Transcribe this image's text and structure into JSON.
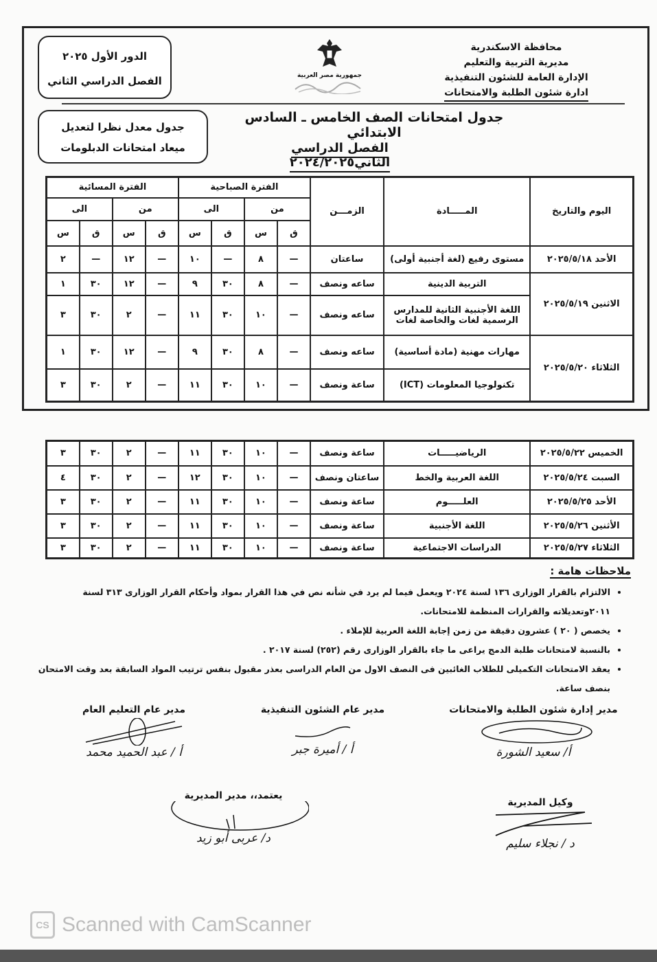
{
  "header": {
    "org_lines": [
      "محافظة الاسكندرية",
      "مديرية التربية والتعليم",
      "الإدارة العامة للشئون التنفيذية",
      "ادارة شئون الطلبة والامتحانات"
    ],
    "emblem_caption": "جمهورية مصر العربية",
    "box_session": [
      "الدور الأول ٢٠٢٥",
      "الفصل الدراسي الثاني"
    ],
    "box_note": [
      "جدول معدل نظرا لتعديل",
      "ميعاد  امتحانات الدبلومات"
    ],
    "title": "جدول امتحانات الصف الخامس ـ السادس الابتدائي",
    "subtitle": "الفصل الدراسي الثاني٢٠٢٤/٢٠٢٥"
  },
  "table_headers": {
    "day_date": "اليوم والتاريخ",
    "subject": "المـــــادة",
    "duration": "الزمـــن",
    "morning": "الفترة الصباحية",
    "evening": "الفترة المسائية",
    "from": "من",
    "to": "الى",
    "minute": "ق",
    "hour": "س"
  },
  "table1_rows": [
    {
      "day": "الأحد ٢٠٢٥/٥/١٨",
      "rowspan": 1,
      "subject": "مستوى رفيع (لغة أجنبية أولى)",
      "duration": "ساعتان",
      "times": [
        "—",
        "٨",
        "—",
        "١٠",
        "—",
        "١٢",
        "—",
        "٢"
      ]
    },
    {
      "day": "الاثنين ٢٠٢٥/٥/١٩",
      "rowspan": 2,
      "subject": "التربية الدينية",
      "duration": "ساعه ونصف",
      "times": [
        "—",
        "٨",
        "٣٠",
        "٩",
        "—",
        "١٢",
        "٣٠",
        "١"
      ]
    },
    {
      "subject": "اللغة الأجنبية الثانية للمدارس الرسمية لغات والخاصة لغات",
      "duration": "ساعه ونصف",
      "times": [
        "—",
        "١٠",
        "٣٠",
        "١١",
        "—",
        "٢",
        "٣٠",
        "٣"
      ]
    },
    {
      "day": "الثلاثاء ٢٠٢٥/٥/٢٠",
      "rowspan": 2,
      "subject": "مهارات مهنية (مادة أساسية)",
      "duration": "ساعه ونصف",
      "times": [
        "—",
        "٨",
        "٣٠",
        "٩",
        "—",
        "١٢",
        "٣٠",
        "١"
      ]
    },
    {
      "subject": "تكنولوجيا المعلومات (ICT)",
      "duration": "ساعة ونصف",
      "times": [
        "—",
        "١٠",
        "٣٠",
        "١١",
        "—",
        "٢",
        "٣٠",
        "٣"
      ]
    }
  ],
  "table2_rows": [
    {
      "day": "الخميس ٢٠٢٥/٥/٢٢",
      "rowspan": 1,
      "subject": "الرياضيـــــات",
      "duration": "ساعة ونصف",
      "times": [
        "—",
        "١٠",
        "٣٠",
        "١١",
        "—",
        "٢",
        "٣٠",
        "٣"
      ]
    },
    {
      "day": "السبت ٢٠٢٥/٥/٢٤",
      "rowspan": 1,
      "subject": "اللغة العربية والخط",
      "duration": "ساعتان ونصف",
      "times": [
        "—",
        "١٠",
        "٣٠",
        "١٢",
        "—",
        "٢",
        "٣٠",
        "٤"
      ]
    },
    {
      "day": "الأحد ٢٠٢٥/٥/٢٥",
      "rowspan": 1,
      "subject": "العلـــــوم",
      "duration": "ساعة ونصف",
      "times": [
        "—",
        "١٠",
        "٣٠",
        "١١",
        "—",
        "٢",
        "٣٠",
        "٣"
      ]
    },
    {
      "day": "الأثنين ٢٠٢٥/٥/٢٦",
      "rowspan": 1,
      "subject": "اللغة الأجنبية",
      "duration": "ساعة ونصف",
      "times": [
        "—",
        "١٠",
        "٣٠",
        "١١",
        "—",
        "٢",
        "٣٠",
        "٣"
      ]
    },
    {
      "day": "الثلاثاء ٢٠٢٥/٥/٢٧",
      "rowspan": 1,
      "subject": "الدراسات الاجتماعية",
      "duration": "ساعة ونصف",
      "times": [
        "—",
        "١٠",
        "٣٠",
        "١١",
        "—",
        "٢",
        "٣٠",
        "٣"
      ]
    }
  ],
  "notes": {
    "heading": "ملاحظات هامة :",
    "items": [
      "الالتزام بالقرار الوزارى ١٣٦ لسنة ٢٠٢٤ ويعمل فيما لم يرد في شأنه نص في هذا القرار بمواد وأحكام القرار الوزارى ٣١٣ لسنة ٢٠١١وتعديلاته والقرارات المنظمة للامتحانات.",
      "يخصص ( ٢٠ ) عشرون دقيقة من زمن إجابة اللغة العربية للإملاء .",
      "بالنسبة لامتحانات طلبة الدمج يراعى ما جاء بالقرار الوزارى رقم (٢٥٢) لسنة ٢٠١٧ .",
      "يعقد الامتحانات  التكميلى للطلاب الغائبين فى النصف الاول من العام الدراسى بعذر مقبول بنفس ترتيب المواد السابقة بعد وقت الامتحان بنصف ساعة."
    ]
  },
  "signatures": {
    "students_affairs": {
      "title": "مدير إدارة شئون الطلبة والامتحانات",
      "name": "أ/ سعيد الشورة"
    },
    "executive_affairs": {
      "title": "مدير عام الشئون التنفيذية",
      "name": "أ / أميرة جبر"
    },
    "general_education": {
      "title": "مدير عام التعليم العام",
      "name": "أ / عبد الحميد محمد"
    },
    "deputy": {
      "title": "وكيل المديرية",
      "name": "د / نجلاء سليم"
    },
    "director": {
      "title": "يعتمد،،  مدير المديرية",
      "name": "د/ عربى أبو زيد"
    }
  },
  "watermark": {
    "logo": "CS",
    "text": "Scanned with CamScanner"
  }
}
